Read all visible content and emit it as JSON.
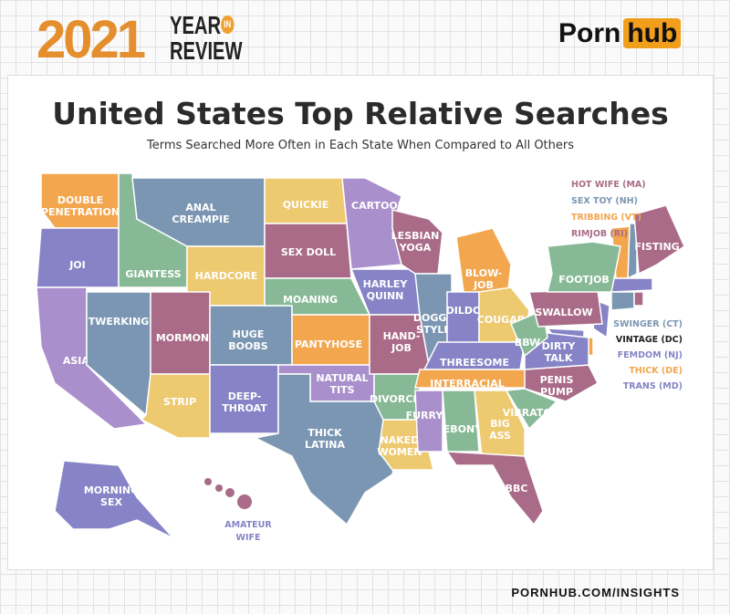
{
  "header": {
    "year": "2021",
    "year_in": "YEAR",
    "in": "IN",
    "review": "REVIEW",
    "brand_porn": "Porn",
    "brand_hub": "hub"
  },
  "title": "United States Top Relative Searches",
  "subtitle": "Terms Searched More Often in Each State When Compared to All Others",
  "colors": {
    "orange": "#f2a64e",
    "blue": "#7b96b2",
    "yellow": "#edc970",
    "lavender": "#a98fcb",
    "mauve": "#a96b87",
    "green": "#87b996",
    "indigo": "#8684c6",
    "brand": "#f19e1c"
  },
  "states": [
    {
      "label": "DOUBLE",
      "label2": "PENETRATION",
      "color": "#f2a64e"
    },
    {
      "label": "JOI",
      "color": "#8684c6"
    },
    {
      "label": "ASIAN",
      "color": "#a98fcb"
    },
    {
      "label": "TWERKING",
      "color": "#7b96b2"
    },
    {
      "label": "GIANTESS",
      "color": "#87b996"
    },
    {
      "label": "ANAL",
      "label2": "CREAMPIE",
      "color": "#7b96b2"
    },
    {
      "label": "HARDCORE",
      "color": "#edc970"
    },
    {
      "label": "MORMON",
      "color": "#a96b87"
    },
    {
      "label": "HUGE",
      "label2": "BOOBS",
      "color": "#7b96b2"
    },
    {
      "label": "STRIP",
      "color": "#edc970"
    },
    {
      "label": "DEEP-",
      "label2": "THROAT",
      "color": "#8684c6"
    },
    {
      "label": "QUICKIE",
      "color": "#edc970"
    },
    {
      "label": "SEX DOLL",
      "color": "#a96b87"
    },
    {
      "label": "MOANING",
      "color": "#87b996"
    },
    {
      "label": "PANTYHOSE",
      "color": "#f2a64e"
    },
    {
      "label": "NATURAL",
      "label2": "TITS",
      "color": "#a98fcb"
    },
    {
      "label": "THICK",
      "label2": "LATINA",
      "color": "#7b96b2"
    },
    {
      "label": "CARTOON",
      "color": "#a98fcb"
    },
    {
      "label": "HARLEY",
      "label2": "QUINN",
      "color": "#8684c6"
    },
    {
      "label": "HAND-",
      "label2": "JOB",
      "color": "#a96b87"
    },
    {
      "label": "DIVORCED",
      "color": "#87b996"
    },
    {
      "label": "NAKED",
      "label2": "WOMEN",
      "color": "#edc970"
    },
    {
      "label": "LESBIAN",
      "label2": "YOGA",
      "color": "#a96b87"
    },
    {
      "label": "DOGGY",
      "label2": "STYLE",
      "color": "#7b96b2"
    },
    {
      "label": "BLOW-",
      "label2": "JOB",
      "color": "#f2a64e"
    },
    {
      "label": "DILDO",
      "color": "#8684c6"
    },
    {
      "label": "COUGAR",
      "color": "#edc970"
    },
    {
      "label": "THREESOME",
      "color": "#8684c6"
    },
    {
      "label": "INTERRACIAL",
      "color": "#f2a64e"
    },
    {
      "label": "FURRY",
      "color": "#a98fcb"
    },
    {
      "label": "EBONY",
      "color": "#87b996"
    },
    {
      "label": "BIG",
      "label2": "ASS",
      "color": "#edc970"
    },
    {
      "label": "BBC",
      "color": "#a96b87"
    },
    {
      "label": "VIBRATOR",
      "color": "#87b996"
    },
    {
      "label": "PENIS",
      "label2": "PUMP",
      "color": "#a96b87"
    },
    {
      "label": "DIRTY",
      "label2": "TALK",
      "color": "#8684c6"
    },
    {
      "label": "BBW",
      "color": "#87b996"
    },
    {
      "label": "SWALLOW",
      "color": "#a96b87"
    },
    {
      "label": "FOOTJOB",
      "color": "#87b996"
    },
    {
      "label": "FISTING",
      "color": "#a96b87"
    },
    {
      "label": "MORNING",
      "label2": "SEX",
      "color": "#8684c6"
    }
  ],
  "hawaii": {
    "label": "AMATEUR",
    "label2": "WIFE",
    "color": "#a96b87"
  },
  "legend_top": [
    {
      "text": "HOT WIFE (MA)",
      "color": "#a96b87"
    },
    {
      "text": "SEX TOY (NH)",
      "color": "#7b96b2"
    },
    {
      "text": "TRIBBING (VT)",
      "color": "#f2a64e"
    },
    {
      "text": "RIMJOB (RI)",
      "color": "#a96b87"
    }
  ],
  "legend_bottom": [
    {
      "text": "SWINGER (CT)",
      "color": "#7b96b2"
    },
    {
      "text": "VINTAGE (DC)",
      "color": "#222222"
    },
    {
      "text": "FEMDOM (NJ)",
      "color": "#8684c6"
    },
    {
      "text": "THICK (DE)",
      "color": "#f2a64e"
    },
    {
      "text": "TRANS (MD)",
      "color": "#8684c6"
    }
  ],
  "footer": "PORNHUB.COM/INSIGHTS"
}
